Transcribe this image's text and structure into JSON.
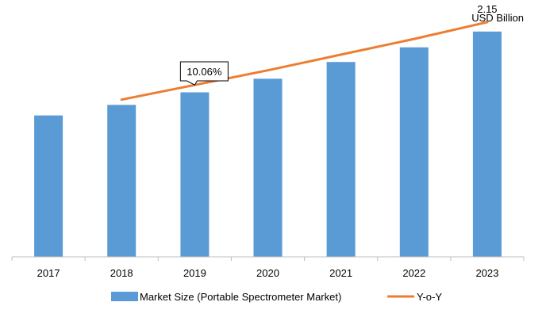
{
  "chart_data": {
    "type": "bar",
    "unit_label": "USD Billion",
    "categories": [
      "2017",
      "2018",
      "2019",
      "2020",
      "2021",
      "2022",
      "2023"
    ],
    "series": [
      {
        "name": "Market Size (Portable Spectrometer Market)",
        "type": "bar",
        "color": "#5b9bd5",
        "values": [
          1.35,
          1.45,
          1.57,
          1.7,
          1.86,
          2.0,
          2.15
        ]
      },
      {
        "name": "Y-o-Y",
        "type": "line",
        "color": "#ed7d31",
        "values": [
          null,
          1.5,
          1.64,
          1.78,
          1.93,
          2.08,
          2.24
        ]
      }
    ],
    "annotations": {
      "last_value_label": "2.15",
      "callout": {
        "text": "10.06%",
        "category": "2019"
      }
    },
    "ylim": [
      0,
      2.3
    ],
    "y_axis_visible": false,
    "grid": false,
    "legend_position": "bottom"
  }
}
